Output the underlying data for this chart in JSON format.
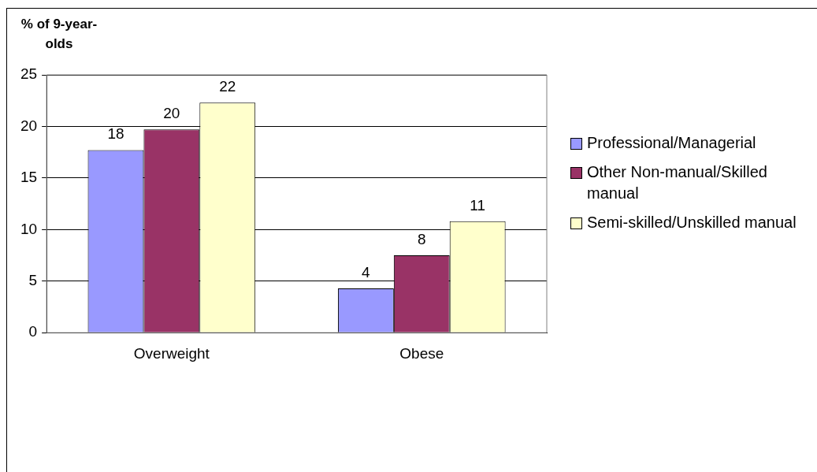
{
  "chart_data": {
    "type": "bar",
    "ylabel": "% of 9-year-olds",
    "categories": [
      "Overweight",
      "Obese"
    ],
    "series": [
      {
        "name": "Professional/Managerial",
        "color": "#9999ff",
        "values": [
          17.7,
          4.3
        ],
        "value_labels": [
          "18",
          "4"
        ]
      },
      {
        "name": "Other Non-manual/Skilled manual",
        "color": "#993366",
        "values": [
          19.7,
          7.5
        ],
        "value_labels": [
          "20",
          "8"
        ]
      },
      {
        "name": "Semi-skilled/Unskilled manual",
        "color": "#ffffcc",
        "values": [
          22.3,
          10.8
        ],
        "value_labels": [
          "22",
          "11"
        ]
      }
    ],
    "ylim": [
      0,
      25
    ],
    "yticks": [
      0,
      5,
      10,
      15,
      20,
      25
    ],
    "grid": "y",
    "legend": "right"
  }
}
